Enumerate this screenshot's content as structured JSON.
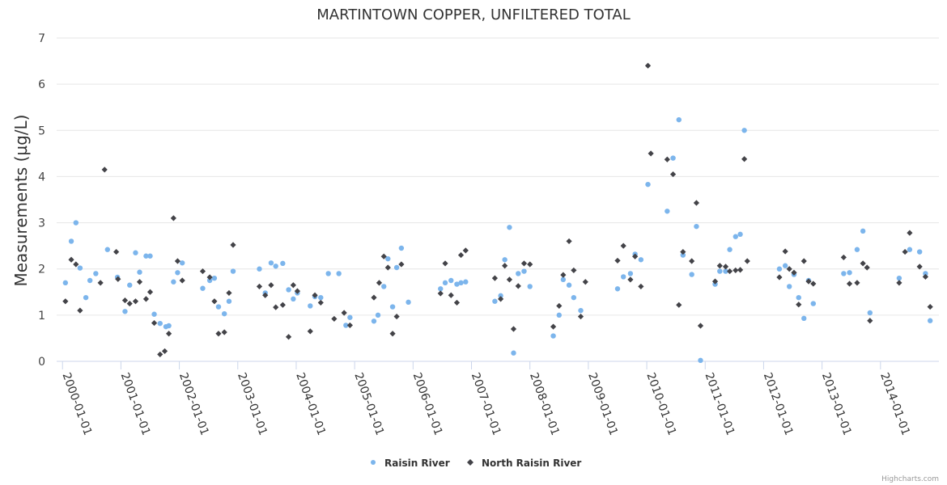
{
  "chart_data": {
    "type": "scatter",
    "title": "MARTINTOWN COPPER, UNFILTERED TOTAL",
    "ylabel": "Measurements (µg/L)",
    "xlabel": "",
    "ylim": [
      0,
      7
    ],
    "yticks": [
      0,
      1,
      2,
      3,
      4,
      5,
      6,
      7
    ],
    "xlim_years": [
      1999.9,
      2015.0
    ],
    "xticks": [
      {
        "label": "2000-01-01",
        "year": 2000
      },
      {
        "label": "2001-01-01",
        "year": 2001
      },
      {
        "label": "2002-01-01",
        "year": 2002
      },
      {
        "label": "2003-01-01",
        "year": 2003
      },
      {
        "label": "2004-01-01",
        "year": 2004
      },
      {
        "label": "2005-01-01",
        "year": 2005
      },
      {
        "label": "2006-01-01",
        "year": 2006
      },
      {
        "label": "2007-01-01",
        "year": 2007
      },
      {
        "label": "2008-01-01",
        "year": 2008
      },
      {
        "label": "2009-01-01",
        "year": 2009
      },
      {
        "label": "2010-01-01",
        "year": 2010
      },
      {
        "label": "2011-01-01",
        "year": 2011
      },
      {
        "label": "2012-01-01",
        "year": 2012
      },
      {
        "label": "2013-01-01",
        "year": 2013
      },
      {
        "label": "2014-01-01",
        "year": 2014
      }
    ],
    "grid": true,
    "legend_position": "bottom-center",
    "series": [
      {
        "name": "Raisin River",
        "color": "#7cb5ec",
        "marker": "circle",
        "points": [
          [
            2000.05,
            1.7
          ],
          [
            2000.15,
            2.6
          ],
          [
            2000.23,
            3.0
          ],
          [
            2000.3,
            2.02
          ],
          [
            2000.4,
            1.38
          ],
          [
            2000.47,
            1.75
          ],
          [
            2000.57,
            1.9
          ],
          [
            2000.77,
            2.42
          ],
          [
            2000.94,
            1.82
          ],
          [
            2001.07,
            1.08
          ],
          [
            2001.15,
            1.65
          ],
          [
            2001.25,
            2.35
          ],
          [
            2001.32,
            1.93
          ],
          [
            2001.43,
            2.28
          ],
          [
            2001.5,
            2.28
          ],
          [
            2001.57,
            1.02
          ],
          [
            2001.67,
            0.82
          ],
          [
            2001.77,
            0.75
          ],
          [
            2001.82,
            0.77
          ],
          [
            2001.9,
            1.72
          ],
          [
            2001.97,
            1.92
          ],
          [
            2002.05,
            2.13
          ],
          [
            2002.4,
            1.58
          ],
          [
            2002.52,
            1.75
          ],
          [
            2002.6,
            1.8
          ],
          [
            2002.67,
            1.18
          ],
          [
            2002.77,
            1.03
          ],
          [
            2002.85,
            1.3
          ],
          [
            2002.92,
            1.95
          ],
          [
            2003.37,
            2.0
          ],
          [
            2003.47,
            1.48
          ],
          [
            2003.57,
            2.13
          ],
          [
            2003.65,
            2.06
          ],
          [
            2003.77,
            2.12
          ],
          [
            2003.87,
            1.55
          ],
          [
            2003.95,
            1.35
          ],
          [
            2004.02,
            1.48
          ],
          [
            2004.24,
            1.2
          ],
          [
            2004.32,
            1.4
          ],
          [
            2004.42,
            1.38
          ],
          [
            2004.55,
            1.9
          ],
          [
            2004.73,
            1.9
          ],
          [
            2004.85,
            0.78
          ],
          [
            2004.92,
            0.95
          ],
          [
            2005.33,
            0.87
          ],
          [
            2005.4,
            1.0
          ],
          [
            2005.5,
            1.62
          ],
          [
            2005.57,
            2.22
          ],
          [
            2005.65,
            1.18
          ],
          [
            2005.72,
            2.03
          ],
          [
            2005.8,
            2.45
          ],
          [
            2005.92,
            1.28
          ],
          [
            2006.47,
            1.57
          ],
          [
            2006.55,
            1.7
          ],
          [
            2006.65,
            1.75
          ],
          [
            2006.75,
            1.67
          ],
          [
            2006.82,
            1.7
          ],
          [
            2006.9,
            1.72
          ],
          [
            2007.4,
            1.3
          ],
          [
            2007.5,
            1.42
          ],
          [
            2007.57,
            2.2
          ],
          [
            2007.65,
            2.9
          ],
          [
            2007.72,
            0.18
          ],
          [
            2007.8,
            1.9
          ],
          [
            2007.9,
            1.95
          ],
          [
            2008.0,
            1.62
          ],
          [
            2008.4,
            0.55
          ],
          [
            2008.5,
            1.0
          ],
          [
            2008.57,
            1.77
          ],
          [
            2008.67,
            1.65
          ],
          [
            2008.75,
            1.38
          ],
          [
            2008.87,
            1.1
          ],
          [
            2009.5,
            1.57
          ],
          [
            2009.6,
            1.83
          ],
          [
            2009.72,
            1.9
          ],
          [
            2009.8,
            2.32
          ],
          [
            2009.9,
            2.2
          ],
          [
            2010.02,
            3.83
          ],
          [
            2010.35,
            3.25
          ],
          [
            2010.45,
            4.4
          ],
          [
            2010.55,
            5.23
          ],
          [
            2010.62,
            2.3
          ],
          [
            2010.77,
            1.88
          ],
          [
            2010.85,
            2.92
          ],
          [
            2010.92,
            0.02
          ],
          [
            2011.17,
            1.67
          ],
          [
            2011.25,
            1.95
          ],
          [
            2011.35,
            1.95
          ],
          [
            2011.42,
            2.42
          ],
          [
            2011.52,
            2.7
          ],
          [
            2011.6,
            2.75
          ],
          [
            2011.67,
            5.0
          ],
          [
            2012.27,
            2.0
          ],
          [
            2012.37,
            2.07
          ],
          [
            2012.44,
            1.62
          ],
          [
            2012.52,
            1.88
          ],
          [
            2012.6,
            1.38
          ],
          [
            2012.69,
            0.93
          ],
          [
            2012.77,
            1.75
          ],
          [
            2012.85,
            1.25
          ],
          [
            2013.37,
            1.9
          ],
          [
            2013.47,
            1.92
          ],
          [
            2013.6,
            2.42
          ],
          [
            2013.7,
            2.82
          ],
          [
            2013.82,
            1.05
          ],
          [
            2014.32,
            1.8
          ],
          [
            2014.5,
            2.42
          ],
          [
            2014.67,
            2.37
          ],
          [
            2014.77,
            1.9
          ],
          [
            2014.85,
            0.88
          ]
        ]
      },
      {
        "name": "North Raisin River",
        "color": "#434348",
        "marker": "diamond",
        "points": [
          [
            2000.05,
            1.3
          ],
          [
            2000.15,
            2.2
          ],
          [
            2000.23,
            2.1
          ],
          [
            2000.3,
            1.1
          ],
          [
            2000.65,
            1.7
          ],
          [
            2000.72,
            4.15
          ],
          [
            2000.92,
            2.37
          ],
          [
            2000.95,
            1.78
          ],
          [
            2001.07,
            1.32
          ],
          [
            2001.15,
            1.25
          ],
          [
            2001.25,
            1.3
          ],
          [
            2001.32,
            1.72
          ],
          [
            2001.43,
            1.35
          ],
          [
            2001.5,
            1.5
          ],
          [
            2001.57,
            0.83
          ],
          [
            2001.67,
            0.15
          ],
          [
            2001.75,
            0.22
          ],
          [
            2001.82,
            0.6
          ],
          [
            2001.9,
            3.1
          ],
          [
            2001.97,
            2.17
          ],
          [
            2002.05,
            1.75
          ],
          [
            2002.4,
            1.95
          ],
          [
            2002.52,
            1.82
          ],
          [
            2002.6,
            1.3
          ],
          [
            2002.67,
            0.6
          ],
          [
            2002.77,
            0.63
          ],
          [
            2002.85,
            1.48
          ],
          [
            2002.92,
            2.52
          ],
          [
            2003.37,
            1.62
          ],
          [
            2003.47,
            1.43
          ],
          [
            2003.57,
            1.65
          ],
          [
            2003.65,
            1.17
          ],
          [
            2003.77,
            1.22
          ],
          [
            2003.87,
            0.53
          ],
          [
            2003.95,
            1.65
          ],
          [
            2004.02,
            1.52
          ],
          [
            2004.24,
            0.65
          ],
          [
            2004.32,
            1.43
          ],
          [
            2004.42,
            1.27
          ],
          [
            2004.65,
            0.92
          ],
          [
            2004.82,
            1.05
          ],
          [
            2004.92,
            0.78
          ],
          [
            2005.33,
            1.38
          ],
          [
            2005.42,
            1.7
          ],
          [
            2005.5,
            2.27
          ],
          [
            2005.57,
            2.03
          ],
          [
            2005.65,
            0.6
          ],
          [
            2005.72,
            0.97
          ],
          [
            2005.8,
            2.1
          ],
          [
            2006.47,
            1.47
          ],
          [
            2006.55,
            2.12
          ],
          [
            2006.65,
            1.43
          ],
          [
            2006.75,
            1.27
          ],
          [
            2006.82,
            2.3
          ],
          [
            2006.9,
            2.4
          ],
          [
            2007.4,
            1.8
          ],
          [
            2007.5,
            1.35
          ],
          [
            2007.57,
            2.07
          ],
          [
            2007.65,
            1.77
          ],
          [
            2007.72,
            0.7
          ],
          [
            2007.8,
            1.63
          ],
          [
            2007.9,
            2.12
          ],
          [
            2008.0,
            2.1
          ],
          [
            2008.4,
            0.75
          ],
          [
            2008.5,
            1.2
          ],
          [
            2008.57,
            1.87
          ],
          [
            2008.67,
            2.6
          ],
          [
            2008.75,
            1.97
          ],
          [
            2008.87,
            0.97
          ],
          [
            2008.95,
            1.72
          ],
          [
            2009.5,
            2.18
          ],
          [
            2009.6,
            2.5
          ],
          [
            2009.72,
            1.77
          ],
          [
            2009.8,
            2.27
          ],
          [
            2009.9,
            1.62
          ],
          [
            2010.02,
            6.4
          ],
          [
            2010.07,
            4.5
          ],
          [
            2010.35,
            4.37
          ],
          [
            2010.45,
            4.05
          ],
          [
            2010.55,
            1.22
          ],
          [
            2010.62,
            2.37
          ],
          [
            2010.77,
            2.17
          ],
          [
            2010.85,
            3.43
          ],
          [
            2010.92,
            0.77
          ],
          [
            2011.17,
            1.73
          ],
          [
            2011.25,
            2.07
          ],
          [
            2011.35,
            2.05
          ],
          [
            2011.42,
            1.95
          ],
          [
            2011.52,
            1.97
          ],
          [
            2011.6,
            1.98
          ],
          [
            2011.67,
            4.38
          ],
          [
            2011.72,
            2.17
          ],
          [
            2012.27,
            1.82
          ],
          [
            2012.37,
            2.38
          ],
          [
            2012.44,
            2.0
          ],
          [
            2012.52,
            1.92
          ],
          [
            2012.6,
            1.23
          ],
          [
            2012.69,
            2.17
          ],
          [
            2012.77,
            1.73
          ],
          [
            2012.85,
            1.68
          ],
          [
            2013.37,
            2.25
          ],
          [
            2013.47,
            1.68
          ],
          [
            2013.6,
            1.7
          ],
          [
            2013.7,
            2.12
          ],
          [
            2013.77,
            2.03
          ],
          [
            2013.82,
            0.88
          ],
          [
            2014.32,
            1.7
          ],
          [
            2014.42,
            2.37
          ],
          [
            2014.5,
            2.78
          ],
          [
            2014.67,
            2.05
          ],
          [
            2014.77,
            1.83
          ],
          [
            2014.85,
            1.18
          ]
        ]
      }
    ]
  },
  "credits": "Highcharts.com"
}
